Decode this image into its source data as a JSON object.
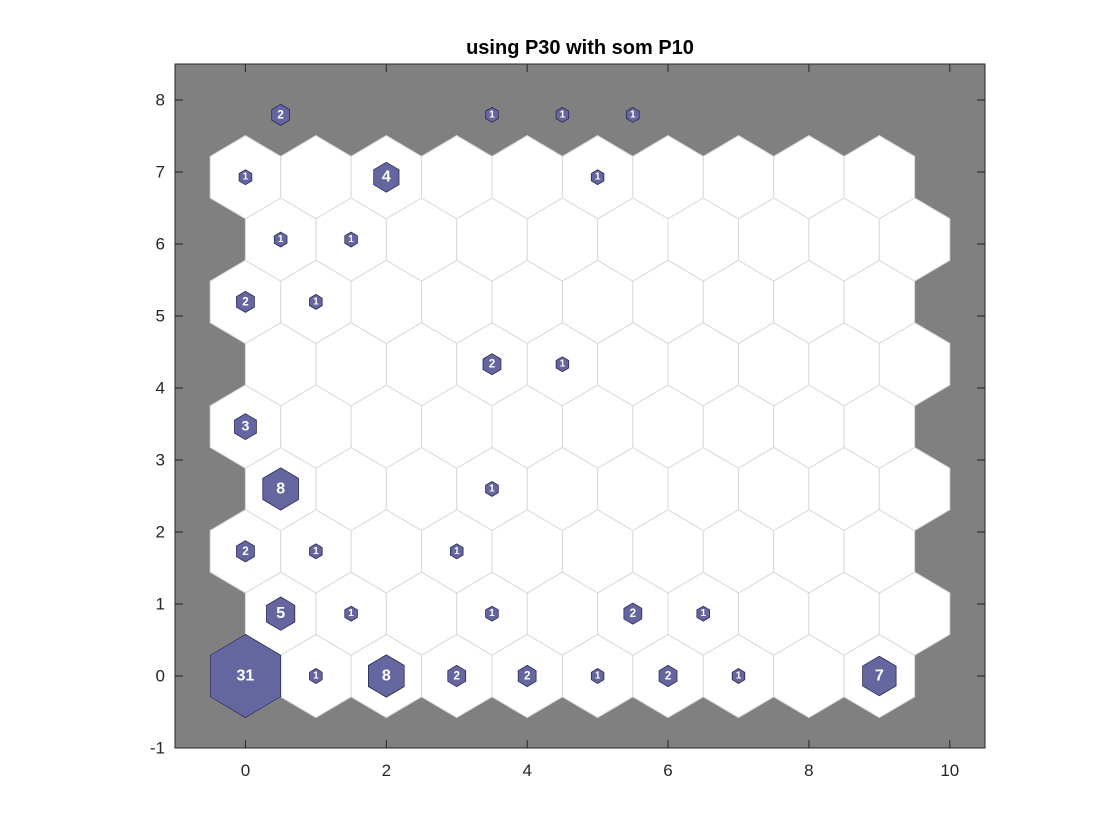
{
  "chart_data": {
    "type": "som-hits-hexagonal",
    "title": "using P30 with som P10",
    "xlim": [
      -1,
      10.5
    ],
    "ylim": [
      -1,
      8.5
    ],
    "xticks": [
      0,
      2,
      4,
      6,
      8,
      10
    ],
    "yticks": [
      -1,
      0,
      1,
      2,
      3,
      4,
      5,
      6,
      7,
      8
    ],
    "xtick_labels": [
      "0",
      "2",
      "4",
      "6",
      "8",
      "10"
    ],
    "ytick_labels": [
      "-1",
      "0",
      "1",
      "2",
      "3",
      "4",
      "5",
      "6",
      "7",
      "8"
    ],
    "grid_cols": 10,
    "grid_rows": 9,
    "background_color": "#808080",
    "cell_color": "#ffffff",
    "cell_edge_color": "#d9d9d9",
    "hit_color": "#6566a0",
    "hit_edge_color": "#2a2a55",
    "hits": [
      {
        "x": 0,
        "y": 0,
        "count": 31
      },
      {
        "x": 1,
        "y": 0,
        "count": 1
      },
      {
        "x": 2,
        "y": 0,
        "count": 8
      },
      {
        "x": 3,
        "y": 0,
        "count": 2
      },
      {
        "x": 4,
        "y": 0,
        "count": 2
      },
      {
        "x": 5,
        "y": 0,
        "count": 1
      },
      {
        "x": 6,
        "y": 0,
        "count": 2
      },
      {
        "x": 7,
        "y": 0,
        "count": 1
      },
      {
        "x": 9,
        "y": 0,
        "count": 7
      },
      {
        "x": 0.5,
        "y": 0.866,
        "count": 5
      },
      {
        "x": 1.5,
        "y": 0.866,
        "count": 1
      },
      {
        "x": 3.5,
        "y": 0.866,
        "count": 1
      },
      {
        "x": 5.5,
        "y": 0.866,
        "count": 2
      },
      {
        "x": 6.5,
        "y": 0.866,
        "count": 1
      },
      {
        "x": 0,
        "y": 1.732,
        "count": 2
      },
      {
        "x": 1,
        "y": 1.732,
        "count": 1
      },
      {
        "x": 3,
        "y": 1.732,
        "count": 1
      },
      {
        "x": 0.5,
        "y": 2.598,
        "count": 8
      },
      {
        "x": 3.5,
        "y": 2.598,
        "count": 1
      },
      {
        "x": 0,
        "y": 3.464,
        "count": 3
      },
      {
        "x": 3.5,
        "y": 4.33,
        "count": 2
      },
      {
        "x": 4.5,
        "y": 4.33,
        "count": 1
      },
      {
        "x": 0,
        "y": 5.196,
        "count": 2
      },
      {
        "x": 1,
        "y": 5.196,
        "count": 1
      },
      {
        "x": 0.5,
        "y": 6.062,
        "count": 1
      },
      {
        "x": 1.5,
        "y": 6.062,
        "count": 1
      },
      {
        "x": 0,
        "y": 6.928,
        "count": 1
      },
      {
        "x": 2,
        "y": 6.928,
        "count": 4
      },
      {
        "x": 5,
        "y": 6.928,
        "count": 1
      },
      {
        "x": 0.5,
        "y": 7.794,
        "count": 2
      },
      {
        "x": 3.5,
        "y": 7.794,
        "count": 1
      },
      {
        "x": 4.5,
        "y": 7.794,
        "count": 1
      },
      {
        "x": 5.5,
        "y": 7.794,
        "count": 1
      }
    ]
  }
}
